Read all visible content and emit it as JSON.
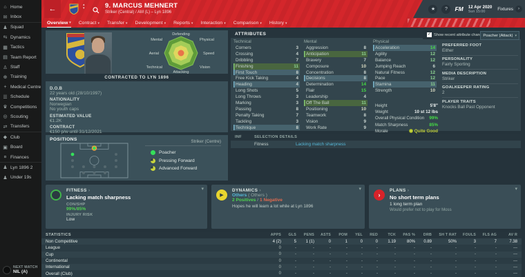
{
  "colors": {
    "topbar_red": "#d4262b",
    "band_slate": "#323f47",
    "sidebar_bg": "#191a1a",
    "main_bg": "#25333b",
    "panel_bg": "#3a4e57",
    "attr_panel_bg": "#33454d",
    "header_band": "#26343c",
    "accent_green": "#46dd46",
    "accent_teal": "#56b8d8",
    "positive_green": "#4fd24f",
    "negative_red": "#e06a4f",
    "morale_yellow": "#c3d23a",
    "role_full_green": "#35e05a",
    "role_partial_yellow": "#c9d53d"
  },
  "icons": {
    "chevron_down": "▾",
    "chevron_right": "›",
    "back_arrow": "←",
    "check": "✓",
    "question": "?",
    "star": "★",
    "sort_up": "▴",
    "sort_down": "▾",
    "dynamics_arrow": "▶"
  },
  "topbar": {
    "player": {
      "number_name": "9. MARCUS MEHNERT",
      "subtitle": "Striker (Central) / AM (L) – Lyn 1896"
    },
    "tabs": [
      {
        "label": "Overview",
        "active": true
      },
      {
        "label": "Contract",
        "active": false
      },
      {
        "label": "Transfer",
        "active": false
      },
      {
        "label": "Development",
        "active": false
      },
      {
        "label": "Reports",
        "active": false
      },
      {
        "label": "Interaction",
        "active": false
      },
      {
        "label": "Comparison",
        "active": false
      },
      {
        "label": "History",
        "active": false
      }
    ],
    "fm_logo": "FM",
    "date": "12 Apr 2020",
    "time": "Sun 15:00",
    "fixtures_label": "Fixtures"
  },
  "sidebar": {
    "items": [
      {
        "label": "Home",
        "icon": "home-icon",
        "glyph": "⌂",
        "divider": false
      },
      {
        "label": "Inbox",
        "icon": "inbox-icon",
        "glyph": "✉",
        "divider": false
      },
      {
        "label": "Squad",
        "icon": "squad-icon",
        "glyph": "♟",
        "divider": true
      },
      {
        "label": "Dynamics",
        "icon": "dynamics-icon",
        "glyph": "⇆",
        "divider": false
      },
      {
        "label": "Tactics",
        "icon": "tactics-icon",
        "glyph": "▦",
        "divider": false
      },
      {
        "label": "Team Report",
        "icon": "team-report-icon",
        "glyph": "▤",
        "divider": false
      },
      {
        "label": "Staff",
        "icon": "staff-icon",
        "glyph": "♙",
        "divider": false
      },
      {
        "label": "Training",
        "icon": "training-icon",
        "glyph": "⊕",
        "divider": false
      },
      {
        "label": "Medical Centre",
        "icon": "medical-icon",
        "glyph": "+",
        "divider": false
      },
      {
        "label": "Schedule",
        "icon": "schedule-icon",
        "glyph": "☰",
        "divider": false
      },
      {
        "label": "Competitions",
        "icon": "competitions-icon",
        "glyph": "♛",
        "divider": false
      },
      {
        "label": "Scouting",
        "icon": "scouting-icon",
        "glyph": "◎",
        "divider": false
      },
      {
        "label": "Transfers",
        "icon": "transfers-icon",
        "glyph": "⇄",
        "divider": false
      },
      {
        "label": "Club",
        "icon": "club-icon",
        "glyph": "◆",
        "divider": true
      },
      {
        "label": "Board",
        "icon": "board-icon",
        "glyph": "▣",
        "divider": false
      },
      {
        "label": "Finances",
        "icon": "finances-icon",
        "glyph": "¤",
        "divider": false
      },
      {
        "label": "Lyn 1896 2",
        "icon": "reserves-icon",
        "glyph": "♟",
        "divider": true
      },
      {
        "label": "Under 19s",
        "icon": "under19s-icon",
        "glyph": "♟",
        "divider": false
      }
    ],
    "next_match_label": "NEXT MATCH",
    "next_match_value": "NIL (A)"
  },
  "player_panel": {
    "contracted": "CONTRACTED TO LYN 1896",
    "radar_labels": [
      "Defending",
      "Physical",
      "Speed",
      "Vision",
      "Attacking",
      "Technical",
      "Aerial",
      "Mental"
    ],
    "info": [
      {
        "label": "D.O.B",
        "lines": [
          "22 years old (28/10/1997)"
        ]
      },
      {
        "label": "NATIONALITY",
        "lines": [
          "Norwegian",
          "No youth caps"
        ]
      },
      {
        "label": "ESTIMATED VALUE",
        "lines": [
          "€1.2K"
        ]
      },
      {
        "label": "CONTRACT",
        "lines": [
          "€150 p/w until 31/12/2021"
        ]
      }
    ]
  },
  "attributes": {
    "title": "ATTRIBUTES",
    "show_changes_label": "Show recent attribute changes",
    "role_dropdown": "Poacher (Attack)",
    "columns": [
      {
        "header": "Technical",
        "rows": [
          {
            "name": "Corners",
            "value": 3,
            "change": ""
          },
          {
            "name": "Crossing",
            "value": 4,
            "change": ""
          },
          {
            "name": "Dribbling",
            "value": 7,
            "change": ""
          },
          {
            "name": "Finishing",
            "value": 11,
            "change": "green"
          },
          {
            "name": "First Touch",
            "value": 8,
            "change": "blue"
          },
          {
            "name": "Free Kick Taking",
            "value": 4,
            "change": ""
          },
          {
            "name": "Heading",
            "value": 4,
            "change": "blue"
          },
          {
            "name": "Long Shots",
            "value": 5,
            "change": ""
          },
          {
            "name": "Long Throws",
            "value": 3,
            "change": ""
          },
          {
            "name": "Marking",
            "value": 3,
            "change": ""
          },
          {
            "name": "Passing",
            "value": 8,
            "change": ""
          },
          {
            "name": "Penalty Taking",
            "value": 7,
            "change": ""
          },
          {
            "name": "Tackling",
            "value": 3,
            "change": ""
          },
          {
            "name": "Technique",
            "value": 8,
            "change": "blue"
          }
        ]
      },
      {
        "header": "Mental",
        "rows": [
          {
            "name": "Aggression",
            "value": 8,
            "change": ""
          },
          {
            "name": "Anticipation",
            "value": 11,
            "change": "green"
          },
          {
            "name": "Bravery",
            "value": 7,
            "change": ""
          },
          {
            "name": "Composure",
            "value": 10,
            "change": ""
          },
          {
            "name": "Concentration",
            "value": 8,
            "change": ""
          },
          {
            "name": "Decisions",
            "value": 8,
            "change": "blue"
          },
          {
            "name": "Determination",
            "value": 14,
            "change": ""
          },
          {
            "name": "Flair",
            "value": 15,
            "change": ""
          },
          {
            "name": "Leadership",
            "value": 4,
            "change": ""
          },
          {
            "name": "Off The Ball",
            "value": 11,
            "change": "green"
          },
          {
            "name": "Positioning",
            "value": 10,
            "change": ""
          },
          {
            "name": "Teamwork",
            "value": 8,
            "change": ""
          },
          {
            "name": "Vision",
            "value": 9,
            "change": ""
          },
          {
            "name": "Work Rate",
            "value": 9,
            "change": ""
          }
        ]
      },
      {
        "header": "Physical",
        "rows": [
          {
            "name": "Acceleration",
            "value": 14,
            "change": "blue"
          },
          {
            "name": "Agility",
            "value": 12,
            "change": ""
          },
          {
            "name": "Balance",
            "value": 12,
            "change": ""
          },
          {
            "name": "Jumping Reach",
            "value": 6,
            "change": ""
          },
          {
            "name": "Natural Fitness",
            "value": 12,
            "change": ""
          },
          {
            "name": "Pace",
            "value": 12,
            "change": ""
          },
          {
            "name": "Stamina",
            "value": 11,
            "change": "blue"
          },
          {
            "name": "Strength",
            "value": 10,
            "change": ""
          }
        ]
      }
    ],
    "extra": [
      {
        "label": "Height",
        "value": "5'8\"",
        "cls": ""
      },
      {
        "label": "Weight",
        "value": "10 st 12 lbs",
        "cls": ""
      },
      {
        "label": "Overall Physical Condition",
        "value": "99%",
        "cls": "green"
      },
      {
        "label": "Match Sharpness",
        "value": "85%",
        "cls": "green"
      },
      {
        "label": "Morale",
        "value": "Quite Good",
        "cls": "morale"
      }
    ]
  },
  "right_info": {
    "sections": [
      {
        "label": "PREFERRED FOOT",
        "value": "Either"
      },
      {
        "label": "PERSONALITY",
        "value": "Fairly Sporting"
      },
      {
        "label": "MEDIA DESCRIPTION",
        "value": "Striker"
      },
      {
        "label": "GOALKEEPER RATING",
        "value": "2"
      },
      {
        "label": "PLAYER TRAITS",
        "value": "Knocks Ball Past Opponent"
      }
    ]
  },
  "positions": {
    "title": "POSITIONS",
    "position_label": "Striker (Centre)",
    "roles": [
      {
        "name": "Poacher",
        "fill": "full"
      },
      {
        "name": "Pressing Forward",
        "fill": "partial"
      },
      {
        "name": "Advanced Forward",
        "fill": "partial"
      }
    ]
  },
  "selection": {
    "col1": "INF",
    "col2": "SELECTION DETAILS",
    "row_label": "Fitness",
    "row_value": "Lacking match sharpness"
  },
  "panels": {
    "fitness": {
      "title": "FITNESS",
      "headline": "Lacking match sharpness",
      "con_shp_label": "CON/SHP",
      "con": "99%",
      "shp": "85%",
      "injury_label": "INJURY RISK",
      "injury": "Low"
    },
    "dynamics": {
      "title": "DYNAMICS",
      "group": "Others",
      "group2": "( Others )",
      "positives": "2 Positives",
      "negatives": "1 Negative",
      "note": "Hopes he will learn a lot while at Lyn 1896"
    },
    "plans": {
      "title": "PLANS",
      "line1": "No short term plans",
      "line2": "1 long term plan",
      "line3": "Would prefer not to play for Moss"
    }
  },
  "stats": {
    "title": "STATISTICS",
    "headers": [
      "APPS",
      "GLS",
      "PENS",
      "ASTS",
      "POM",
      "YEL",
      "RED",
      "TCK",
      "PAS %",
      "DRB",
      "SH T RAT",
      "FOULS",
      "FLS AG",
      "AV R"
    ],
    "rows": [
      {
        "label": "Non Competitive",
        "values": [
          "4 (2)",
          "5",
          "1 (1)",
          "0",
          "1",
          "0",
          "0",
          "1.19",
          "80%",
          "0.89",
          "50%",
          "3",
          "7",
          "7.38"
        ]
      },
      {
        "label": "League",
        "values": [
          "0",
          "-",
          "-",
          "-",
          "-",
          "-",
          "-",
          "-",
          "-",
          "-",
          "-",
          "-",
          "-",
          "—"
        ]
      },
      {
        "label": "Cup",
        "values": [
          "0",
          "-",
          "-",
          "-",
          "-",
          "-",
          "-",
          "-",
          "-",
          "-",
          "-",
          "-",
          "-",
          "—"
        ]
      },
      {
        "label": "Continental",
        "values": [
          "0",
          "-",
          "-",
          "-",
          "-",
          "-",
          "-",
          "-",
          "-",
          "-",
          "-",
          "-",
          "-",
          "—"
        ]
      },
      {
        "label": "International",
        "values": [
          "0",
          "-",
          "-",
          "-",
          "-",
          "-",
          "-",
          "-",
          "-",
          "-",
          "-",
          "-",
          "-",
          "—"
        ]
      },
      {
        "label": "Overall (Club)",
        "values": [
          "0",
          "-",
          "-",
          "-",
          "-",
          "-",
          "-",
          "-",
          "-",
          "-",
          "-",
          "-",
          "-",
          "—"
        ]
      }
    ]
  }
}
